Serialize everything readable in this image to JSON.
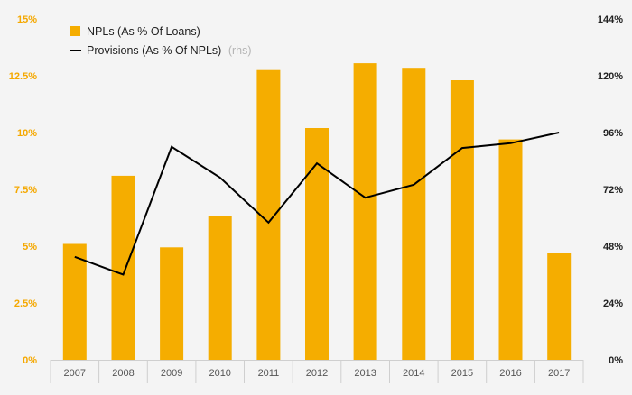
{
  "chart_data": {
    "type": "bar",
    "categories": [
      "2007",
      "2008",
      "2009",
      "2010",
      "2011",
      "2012",
      "2013",
      "2014",
      "2015",
      "2016",
      "2017"
    ],
    "series": [
      {
        "name": "NPLs (As % Of Loans)",
        "type": "bar",
        "axis": "left",
        "values": [
          5.1,
          8.1,
          4.95,
          6.35,
          12.75,
          10.2,
          13.05,
          12.85,
          12.3,
          9.7,
          4.7
        ],
        "color": "#f5ad00"
      },
      {
        "name": "Provisions (As % Of NPLs)",
        "note": "(rhs)",
        "type": "line",
        "axis": "right",
        "values": [
          43.5,
          36,
          90,
          77,
          58,
          83,
          68.5,
          74,
          89.5,
          91.5,
          96
        ],
        "color": "#000000"
      }
    ],
    "y_left": {
      "ylim": [
        0,
        15
      ],
      "ticks": [
        0,
        2.5,
        5,
        7.5,
        10,
        12.5,
        15
      ],
      "tick_labels": [
        "0%",
        "2.5%",
        "5%",
        "7.5%",
        "10%",
        "12.5%",
        "15%"
      ],
      "color": "#f5a800"
    },
    "y_right": {
      "ylim": [
        0,
        144
      ],
      "ticks": [
        0,
        24,
        48,
        72,
        96,
        120,
        144
      ],
      "tick_labels": [
        "0%",
        "24%",
        "48%",
        "72%",
        "96%",
        "120%",
        "144%"
      ],
      "color": "#222222"
    },
    "title": "",
    "xlabel": "",
    "legend": {
      "placement": "top-left",
      "bar_label": "NPLs (As % Of Loans)",
      "line_label": "Provisions (As % Of NPLs)",
      "line_note": "(rhs)"
    },
    "grid": false
  }
}
